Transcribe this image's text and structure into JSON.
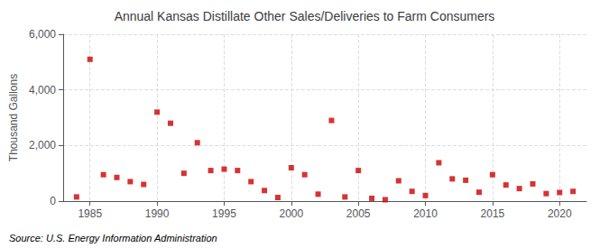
{
  "chart_data": {
    "type": "scatter",
    "title": "Annual Kansas Distillate Other Sales/Deliveries to Farm Consumers",
    "ylabel": "Thousand Gallons",
    "annotation": "Source: U.S. Energy Information Administration",
    "x": [
      1984,
      1985,
      1986,
      1987,
      1988,
      1989,
      1990,
      1991,
      1992,
      1993,
      1994,
      1995,
      1996,
      1997,
      1998,
      1999,
      2000,
      2001,
      2002,
      2003,
      2004,
      2005,
      2006,
      2007,
      2008,
      2009,
      2010,
      2011,
      2012,
      2013,
      2014,
      2015,
      2016,
      2017,
      2018,
      2019,
      2020,
      2021
    ],
    "values": [
      150,
      5100,
      950,
      850,
      700,
      600,
      3200,
      2800,
      1000,
      2100,
      1100,
      1150,
      1100,
      700,
      380,
      130,
      1200,
      950,
      250,
      2900,
      150,
      1100,
      100,
      50,
      730,
      350,
      200,
      1380,
      800,
      750,
      320,
      950,
      580,
      450,
      620,
      270,
      310,
      350
    ],
    "color": "#cc0000",
    "marker": "square",
    "xlim": [
      1983,
      2022
    ],
    "xticks": [
      1985,
      1990,
      1995,
      2000,
      2005,
      2010,
      2015,
      2020
    ],
    "ylim": [
      0,
      6000
    ],
    "yticks": [
      0,
      {
        "value": 2000,
        "label": "2,000"
      },
      {
        "value": 4000,
        "label": "4,000"
      },
      {
        "value": 6000,
        "label": "6,000"
      }
    ],
    "grid": true
  }
}
